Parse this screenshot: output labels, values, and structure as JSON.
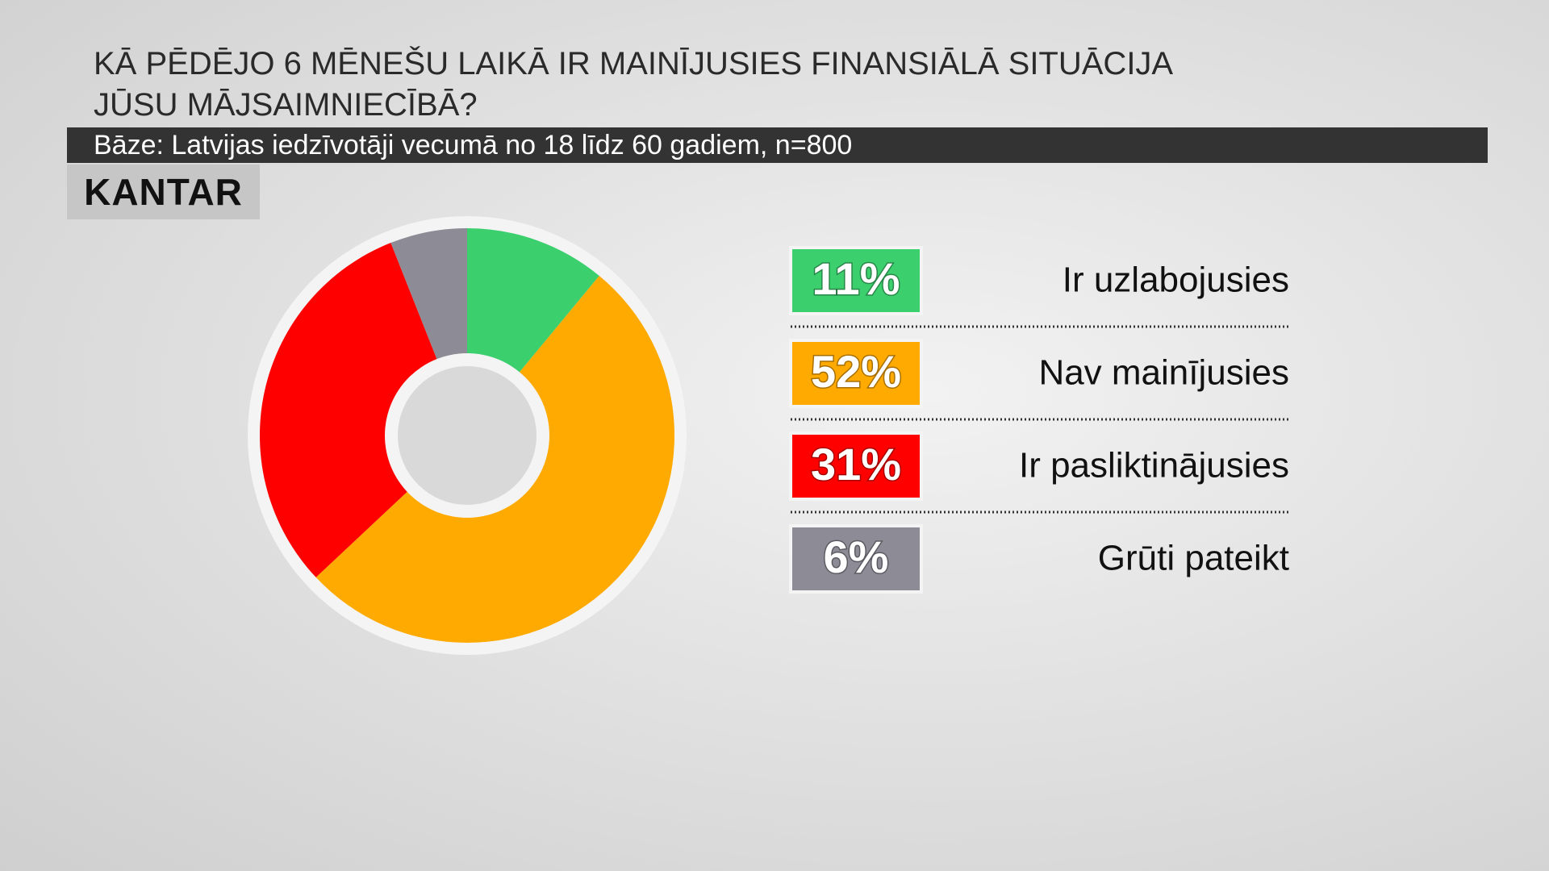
{
  "logo": "KANTAR",
  "chart_data": {
    "type": "pie",
    "title": [
      "KĀ PĒDĒJO 6 MĒNEŠU LAIKĀ IR MAINĪJUSIES FINANSIĀLĀ SITUĀCIJA",
      "JŪSU MĀJSAIMNIECĪBĀ?"
    ],
    "subtitle": "Bāze: Latvijas iedzīvotāji vecumā no 18 līdz 60 gadiem, n=800",
    "categories": [
      "Ir uzlabojusies",
      "Nav mainījusies",
      "Ir pasliktinājusies",
      "Grūti pateikt"
    ],
    "values": [
      11,
      52,
      31,
      6
    ],
    "value_labels": [
      "11%",
      "52%",
      "31%",
      "6%"
    ],
    "colors": [
      "#3ccf6e",
      "#ffaa00",
      "#ff0000",
      "#8c8b96"
    ]
  }
}
